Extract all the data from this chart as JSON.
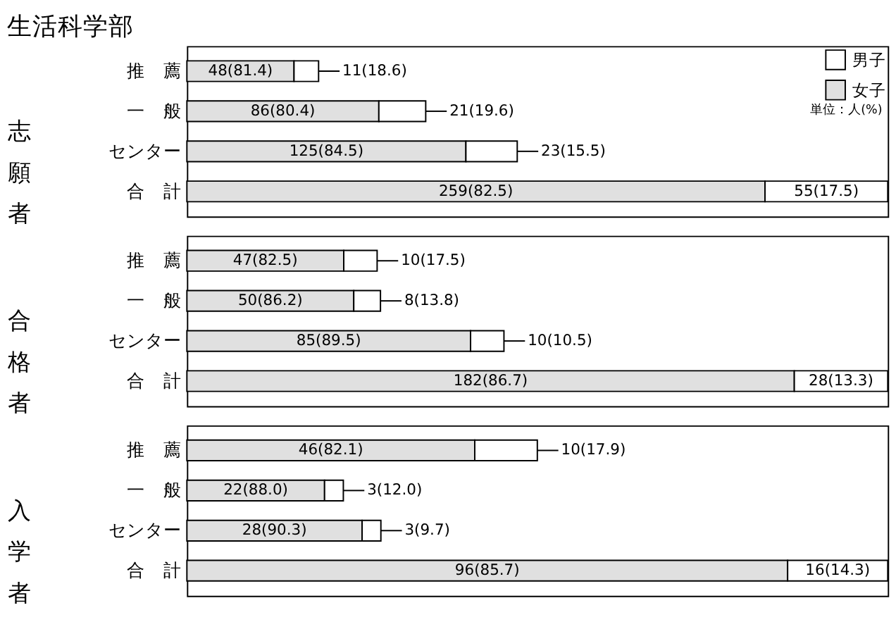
{
  "chart_data": [
    {
      "type": "bar",
      "orientation": "horizontal",
      "stacked": true,
      "title": "生活科学部",
      "ylabel": "志願者",
      "legend": "top right",
      "annotations": [
        "単位：人(%)"
      ],
      "categories": [
        "推　薦",
        "一　般",
        "センター",
        "合　計"
      ],
      "series": [
        {
          "name": "女子",
          "color": "#e0e0e0",
          "values": [
            48,
            86,
            125,
            259
          ],
          "value_labels": [
            "48(81.4)",
            "86(80.4)",
            "125(84.5)",
            "259(82.5)"
          ]
        },
        {
          "name": "男子",
          "color": "#ffffff",
          "values": [
            11,
            21,
            23,
            55
          ],
          "value_labels": [
            "11(18.6)",
            "21(19.6)",
            "23(15.5)",
            "55(17.5)"
          ]
        }
      ]
    },
    {
      "type": "bar",
      "orientation": "horizontal",
      "stacked": true,
      "ylabel": "合格者",
      "categories": [
        "推　薦",
        "一　般",
        "センター",
        "合　計"
      ],
      "series": [
        {
          "color": "#e0e0e0",
          "values": [
            47,
            50,
            85,
            182
          ],
          "value_labels": [
            "47(82.5)",
            "50(86.2)",
            "85(89.5)",
            "182(86.7)"
          ]
        },
        {
          "color": "#ffffff",
          "values": [
            10,
            8,
            10,
            28
          ],
          "value_labels": [
            "10(17.5)",
            "8(13.8)",
            "10(10.5)",
            "28(13.3)"
          ]
        }
      ]
    },
    {
      "type": "bar",
      "orientation": "horizontal",
      "stacked": true,
      "ylabel": "入学者",
      "categories": [
        "推　薦",
        "一　般",
        "センター",
        "合　計"
      ],
      "series": [
        {
          "color": "#e0e0e0",
          "values": [
            46,
            22,
            28,
            96
          ],
          "value_labels": [
            "46(82.1)",
            "22(88.0)",
            "28(90.3)",
            "96(85.7)"
          ]
        },
        {
          "color": "#ffffff",
          "values": [
            10,
            3,
            3,
            16
          ],
          "value_labels": [
            "10(17.9)",
            "3(12.0)",
            "3(9.7)",
            "16(14.3)"
          ]
        }
      ]
    }
  ]
}
